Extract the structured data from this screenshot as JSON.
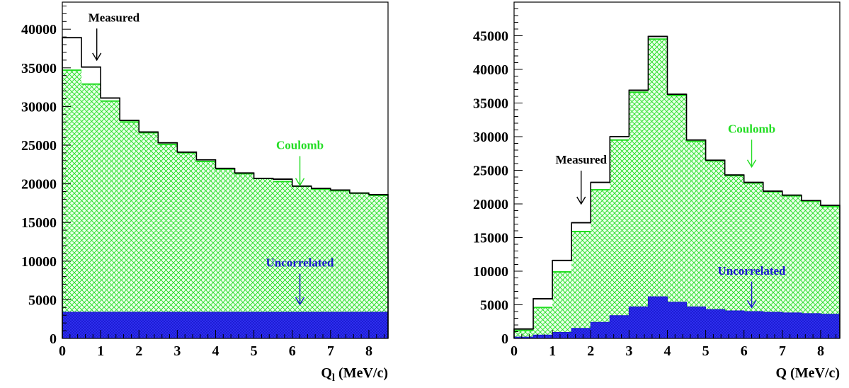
{
  "colors": {
    "measured": "#000000",
    "coulomb": "#22dd22",
    "coulomb_fill_bg": "#eaffea",
    "uncorrelated": "#1a1ad0",
    "uncorrelated_hatch": "#3a3aff"
  },
  "chart_data": [
    {
      "type": "histogram",
      "xlabel": "Q",
      "xlabel_sub": "l",
      "xlabel_unit": " (MeV/c)",
      "xlim": [
        0,
        8.5
      ],
      "ylim": [
        0,
        43500
      ],
      "xticks": [
        0,
        1,
        2,
        3,
        4,
        5,
        6,
        7,
        8
      ],
      "yticks": [
        0,
        5000,
        10000,
        15000,
        20000,
        25000,
        30000,
        35000,
        40000
      ],
      "bin_width": 0.5,
      "bin_edges": [
        0,
        0.5,
        1,
        1.5,
        2,
        2.5,
        3,
        3.5,
        4,
        4.5,
        5,
        5.5,
        6,
        6.5,
        7,
        7.5,
        8,
        8.5
      ],
      "series": [
        {
          "name": "Measured",
          "style": "step-outline",
          "values": [
            38900,
            35100,
            31100,
            28200,
            26700,
            25300,
            24100,
            23100,
            22000,
            21400,
            20700,
            20600,
            19700,
            19400,
            19200,
            18800,
            18600
          ]
        },
        {
          "name": "Coulomb",
          "style": "crosshatch-fill",
          "values": [
            34700,
            32900,
            30700,
            28000,
            26600,
            25100,
            24000,
            22900,
            21900,
            21300,
            20700,
            20300,
            19700,
            19300,
            19100,
            18800,
            18500
          ]
        },
        {
          "name": "Uncorrelated",
          "style": "solid-fill",
          "values": [
            3400,
            3400,
            3400,
            3400,
            3400,
            3400,
            3400,
            3400,
            3400,
            3400,
            3400,
            3400,
            3400,
            3400,
            3400,
            3400,
            3400
          ]
        }
      ],
      "annotations": [
        {
          "text": "Measured",
          "series": "Measured",
          "x": 0.9,
          "y": 36000,
          "text_y": 41000
        },
        {
          "text": "Coulomb",
          "series": "Coulomb",
          "x": 6.2,
          "y": 19800,
          "text_y": 24500
        },
        {
          "text": "Uncorrelated",
          "series": "Uncorrelated",
          "x": 6.2,
          "y": 4400,
          "text_y": 9300
        }
      ]
    },
    {
      "type": "histogram",
      "xlabel": "Q",
      "xlabel_sub": "",
      "xlabel_unit": " (MeV/c)",
      "xlim": [
        0,
        8.5
      ],
      "ylim": [
        0,
        50000
      ],
      "xticks": [
        0,
        1,
        2,
        3,
        4,
        5,
        6,
        7,
        8
      ],
      "yticks": [
        0,
        5000,
        10000,
        15000,
        20000,
        25000,
        30000,
        35000,
        40000,
        45000
      ],
      "bin_width": 0.5,
      "bin_edges": [
        0,
        0.5,
        1,
        1.5,
        2,
        2.5,
        3,
        3.5,
        4,
        4.5,
        5,
        5.5,
        6,
        6.5,
        7,
        7.5,
        8,
        8.5
      ],
      "series": [
        {
          "name": "Measured",
          "style": "step-outline",
          "values": [
            1400,
            5900,
            11600,
            17200,
            23200,
            30000,
            36900,
            44900,
            36300,
            29500,
            26500,
            24300,
            23200,
            21900,
            21300,
            20500,
            19800
          ]
        },
        {
          "name": "Coulomb",
          "style": "crosshatch-fill",
          "values": [
            1200,
            4600,
            9900,
            15900,
            22100,
            29500,
            36600,
            44500,
            36100,
            29300,
            26400,
            24200,
            23100,
            21800,
            21200,
            20400,
            19600
          ]
        },
        {
          "name": "Uncorrelated",
          "style": "solid-fill",
          "values": [
            200,
            500,
            900,
            1500,
            2400,
            3400,
            4700,
            6200,
            5400,
            4700,
            4300,
            4100,
            4000,
            3900,
            3800,
            3700,
            3600
          ]
        }
      ],
      "annotations": [
        {
          "text": "Measured",
          "series": "Measured",
          "x": 1.75,
          "y": 20000,
          "text_y": 26000
        },
        {
          "text": "Coulomb",
          "series": "Coulomb",
          "x": 6.2,
          "y": 25500,
          "text_y": 30600
        },
        {
          "text": "Uncorrelated",
          "series": "Uncorrelated",
          "x": 6.2,
          "y": 4600,
          "text_y": 9500
        }
      ]
    }
  ]
}
